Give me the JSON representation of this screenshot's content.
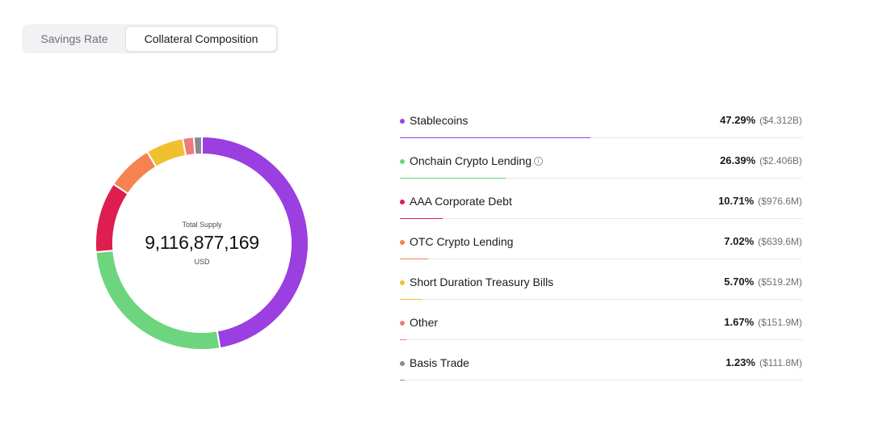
{
  "tabs": [
    {
      "label": "Savings Rate",
      "active": false
    },
    {
      "label": "Collateral Composition",
      "active": true
    }
  ],
  "center": {
    "label": "Total Supply",
    "value": "9,116,877,169",
    "unit": "USD"
  },
  "chart_data": {
    "type": "pie",
    "style": "donut",
    "categories": [
      "Stablecoins",
      "Onchain Crypto Lending",
      "AAA Corporate Debt",
      "OTC Crypto Lending",
      "Short Duration Treasury Bills",
      "Other",
      "Basis Trade"
    ],
    "values": [
      47.29,
      26.39,
      10.71,
      7.02,
      5.7,
      1.67,
      1.23
    ],
    "amounts": [
      "($4.312B)",
      "($2.406B)",
      "($976.6M)",
      "($639.6M)",
      "($519.2M)",
      "($151.9M)",
      "($111.8M)"
    ],
    "percent_labels": [
      "47.29%",
      "26.39%",
      "10.71%",
      "7.02%",
      "5.70%",
      "1.67%",
      "1.23%"
    ],
    "colors": [
      "#9b3fe0",
      "#6dd57e",
      "#de1e50",
      "#f5824f",
      "#f1c02f",
      "#f07a7a",
      "#8a8a93"
    ],
    "info_icon_on": "Onchain Crypto Lending"
  }
}
